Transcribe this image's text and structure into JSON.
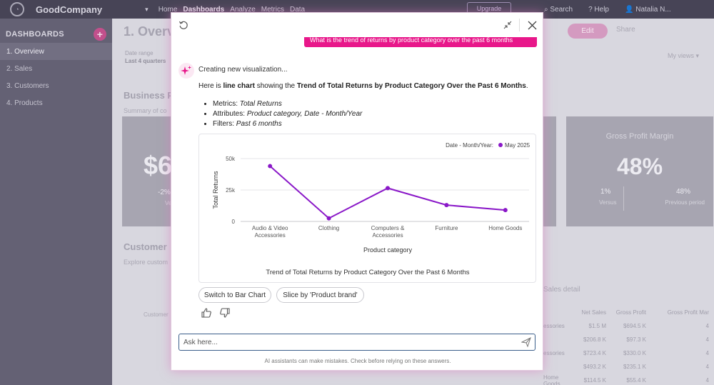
{
  "app": {
    "brand": "GoodCompany",
    "nav": [
      "Home",
      "Dashboards",
      "Analyze",
      "Metrics",
      "Data"
    ],
    "nav_active": "Dashboards",
    "upgrade": "Upgrade",
    "search": "Search",
    "help": "Help",
    "user": "Natalia N..."
  },
  "sidebar": {
    "title": "DASHBOARDS",
    "items": [
      {
        "label": "1. Overview",
        "active": true
      },
      {
        "label": "2. Sales",
        "active": false
      },
      {
        "label": "3. Customers",
        "active": false
      },
      {
        "label": "4. Products",
        "active": false
      }
    ]
  },
  "dashboard": {
    "title": "1. Overv",
    "date_range_label": "Date range",
    "date_range_value": "Last 4 quarters",
    "section1": "Business P",
    "summary": "Summary of co",
    "kpi_left": {
      "value": "$6",
      "pct": "-2%",
      "sub": "Versu"
    },
    "kpi_right": {
      "label": "Gross Profit Margin",
      "value": "48%",
      "v1": "1%",
      "v2": "48%",
      "l1": "Versus",
      "l2": "Previous period"
    },
    "section2": "Customer",
    "explore": "Explore custom",
    "customer_col": "Customer",
    "sales_detail": "Sales detail",
    "edit": "Edit",
    "share": "Share",
    "my_views": "My views",
    "table": {
      "headers": [
        "",
        "Net Sales",
        "Gross Profit",
        "Gross Profit Mar"
      ],
      "rows": [
        [
          "essories",
          "$1.5 M",
          "$694.5 K",
          "4"
        ],
        [
          "",
          "$206.8 K",
          "$97.3 K",
          "4"
        ],
        [
          "essories",
          "$723.4 K",
          "$330.0 K",
          "4"
        ],
        [
          "",
          "$493.2 K",
          "$235.1 K",
          "4"
        ],
        [
          "Home Goods",
          "$114.5 K",
          "$55.4 K",
          "4"
        ]
      ]
    }
  },
  "assistant": {
    "user_question": "What is the trend of returns by product category over the past 6 months",
    "status": "Creating new visualization...",
    "intro_pre": "Here is ",
    "intro_type": "line chart",
    "intro_mid": " showing the ",
    "intro_title": "Trend of Total Returns by Product Category Over the Past 6 Months",
    "intro_end": ".",
    "bullets": [
      {
        "label": "Metrics: ",
        "value": "Total Returns"
      },
      {
        "label": "Attributes: ",
        "value": "Product category, Date - Month/Year"
      },
      {
        "label": "Filters: ",
        "value": "Past 6 months"
      }
    ],
    "buttons": {
      "switch": "Switch to Bar Chart",
      "slice": "Slice by 'Product brand'"
    },
    "ask_placeholder": "Ask here...",
    "disclaimer": "AI assistants can make mistakes. Check before relying on these answers."
  },
  "chart_data": {
    "type": "line",
    "title": "Trend of Total Returns by Product Category Over the Past 6 Months",
    "xlabel": "Product category",
    "ylabel": "Total Returns",
    "categories": [
      "Audio & Video Accessories",
      "Clothing",
      "Computers & Accessories",
      "Furniture",
      "Home Goods"
    ],
    "category_lines": [
      [
        "Audio & Video",
        "Accessories"
      ],
      [
        "Clothing"
      ],
      [
        "Computers &",
        "Accessories"
      ],
      [
        "Furniture"
      ],
      [
        "Home Goods"
      ]
    ],
    "series": [
      {
        "name": "May 2025",
        "values": [
          44000,
          2500,
          26500,
          13000,
          9000
        ],
        "color": "#8a18c8"
      }
    ],
    "ylim": [
      0,
      50000
    ],
    "yticks": [
      0,
      25000,
      50000
    ],
    "ytick_labels": [
      "0",
      "25k",
      "50k"
    ],
    "legend_title": "Date - Month/Year:",
    "legend_position": "top-right",
    "grid": true
  },
  "colors": {
    "accent": "#e8178a",
    "series": "#8a18c8",
    "input_border": "#3b5e8a"
  }
}
